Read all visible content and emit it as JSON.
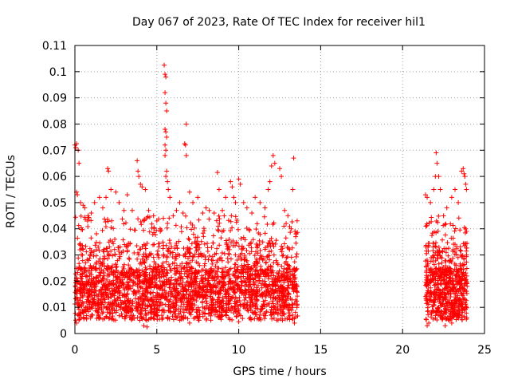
{
  "chart_data": {
    "type": "scatter",
    "title": "Day 067 of 2023, Rate Of TEC Index for receiver hil1",
    "xlabel": "GPS time / hours",
    "ylabel": "ROTI / TECUs",
    "xlim": [
      0,
      25
    ],
    "ylim": [
      0,
      0.11
    ],
    "x_ticks": [
      0,
      5,
      10,
      15,
      20,
      25
    ],
    "y_ticks": [
      0,
      0.01,
      0.02,
      0.03,
      0.04,
      0.05,
      0.06,
      0.07,
      0.08,
      0.09,
      0.1,
      0.11
    ],
    "x_tick_labels": [
      "0",
      "5",
      "10",
      "15",
      "20",
      "25"
    ],
    "y_tick_labels": [
      "0",
      "0.01",
      "0.02",
      "0.03",
      "0.04",
      "0.05",
      "0.06",
      "0.07",
      "0.08",
      "0.09",
      "0.1",
      "0.11"
    ],
    "grid": true,
    "marker": "plus",
    "color": "#ff0000",
    "series": [
      {
        "points": [
          [
            0.0,
            0.072
          ],
          [
            0.05,
            0.071
          ],
          [
            0.1,
            0.0725
          ],
          [
            0.2,
            0.07
          ],
          [
            0.25,
            0.065
          ],
          [
            0.1,
            0.054
          ],
          [
            0.15,
            0.053
          ],
          [
            0.35,
            0.05
          ],
          [
            0.5,
            0.049
          ],
          [
            0.6,
            0.048
          ],
          [
            0.8,
            0.045
          ],
          [
            1.0,
            0.046
          ],
          [
            1.2,
            0.05
          ],
          [
            1.5,
            0.052
          ],
          [
            1.7,
            0.048
          ],
          [
            1.9,
            0.052
          ],
          [
            2.0,
            0.063
          ],
          [
            2.05,
            0.062
          ],
          [
            2.2,
            0.055
          ],
          [
            2.5,
            0.054
          ],
          [
            2.7,
            0.05
          ],
          [
            3.0,
            0.047
          ],
          [
            3.2,
            0.053
          ],
          [
            3.5,
            0.047
          ],
          [
            3.8,
            0.066
          ],
          [
            3.85,
            0.062
          ],
          [
            3.9,
            0.06
          ],
          [
            4.0,
            0.057
          ],
          [
            4.1,
            0.056
          ],
          [
            4.3,
            0.055
          ],
          [
            4.5,
            0.047
          ],
          [
            4.8,
            0.045
          ],
          [
            5.0,
            0.043
          ],
          [
            5.2,
            0.04
          ],
          [
            5.4,
            0.044
          ],
          [
            5.45,
            0.1025
          ],
          [
            5.5,
            0.099
          ],
          [
            5.55,
            0.098
          ],
          [
            5.5,
            0.092
          ],
          [
            5.55,
            0.088
          ],
          [
            5.6,
            0.085
          ],
          [
            5.5,
            0.078
          ],
          [
            5.55,
            0.077
          ],
          [
            5.6,
            0.075
          ],
          [
            5.5,
            0.072
          ],
          [
            5.55,
            0.07
          ],
          [
            5.5,
            0.068
          ],
          [
            5.6,
            0.062
          ],
          [
            5.55,
            0.06
          ],
          [
            5.65,
            0.058
          ],
          [
            5.7,
            0.055
          ],
          [
            5.8,
            0.052
          ],
          [
            6.0,
            0.045
          ],
          [
            6.2,
            0.047
          ],
          [
            6.4,
            0.05
          ],
          [
            6.6,
            0.046
          ],
          [
            6.8,
            0.08
          ],
          [
            6.7,
            0.0725
          ],
          [
            6.75,
            0.072
          ],
          [
            6.8,
            0.068
          ],
          [
            7.0,
            0.054
          ],
          [
            7.2,
            0.05
          ],
          [
            7.5,
            0.052
          ],
          [
            7.8,
            0.046
          ],
          [
            8.0,
            0.048
          ],
          [
            8.2,
            0.047
          ],
          [
            8.5,
            0.046
          ],
          [
            8.7,
            0.0615
          ],
          [
            8.8,
            0.055
          ],
          [
            9.0,
            0.047
          ],
          [
            9.2,
            0.052
          ],
          [
            9.5,
            0.058
          ],
          [
            9.6,
            0.056
          ],
          [
            9.7,
            0.052
          ],
          [
            9.8,
            0.05
          ],
          [
            10.0,
            0.059
          ],
          [
            10.1,
            0.057
          ],
          [
            10.3,
            0.05
          ],
          [
            10.5,
            0.048
          ],
          [
            10.8,
            0.046
          ],
          [
            11.0,
            0.052
          ],
          [
            11.3,
            0.05
          ],
          [
            11.6,
            0.048
          ],
          [
            11.8,
            0.055
          ],
          [
            11.9,
            0.058
          ],
          [
            12.0,
            0.064
          ],
          [
            12.1,
            0.068
          ],
          [
            12.2,
            0.065
          ],
          [
            12.5,
            0.063
          ],
          [
            12.6,
            0.06
          ],
          [
            12.8,
            0.047
          ],
          [
            13.0,
            0.045
          ],
          [
            13.2,
            0.04
          ],
          [
            13.35,
            0.067
          ],
          [
            13.3,
            0.055
          ],
          [
            13.5,
            0.038
          ],
          [
            21.4,
            0.053
          ],
          [
            21.5,
            0.052
          ],
          [
            21.7,
            0.05
          ],
          [
            21.9,
            0.055
          ],
          [
            22.0,
            0.06
          ],
          [
            22.05,
            0.069
          ],
          [
            22.1,
            0.065
          ],
          [
            22.2,
            0.06
          ],
          [
            22.3,
            0.055
          ],
          [
            22.5,
            0.045
          ],
          [
            22.7,
            0.048
          ],
          [
            23.0,
            0.052
          ],
          [
            23.2,
            0.055
          ],
          [
            23.4,
            0.05
          ],
          [
            23.6,
            0.062
          ],
          [
            23.7,
            0.063
          ],
          [
            23.75,
            0.061
          ],
          [
            23.8,
            0.06
          ],
          [
            23.85,
            0.057
          ],
          [
            23.9,
            0.055
          ],
          [
            23.85,
            0.04
          ],
          [
            23.9,
            0.039
          ],
          [
            21.6,
            0.004
          ],
          [
            21.5,
            0.003
          ],
          [
            4.2,
            0.003
          ],
          [
            4.4,
            0.0025
          ],
          [
            0.1,
            0.004
          ],
          [
            13.4,
            0.004
          ],
          [
            7.0,
            0.004
          ],
          [
            10.0,
            0.0045
          ],
          [
            22.6,
            0.003
          ],
          [
            23.0,
            0.004
          ]
        ]
      }
    ]
  }
}
